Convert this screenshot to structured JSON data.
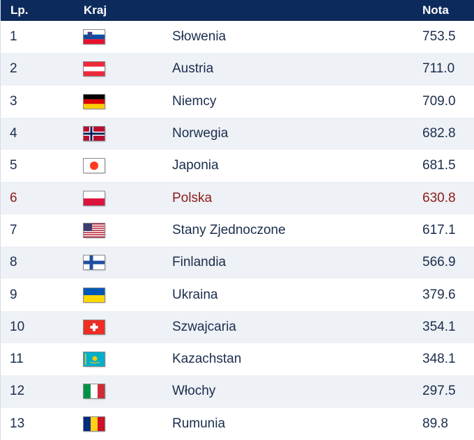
{
  "header": {
    "lp": "Lp.",
    "country": "Kraj",
    "score": "Nota"
  },
  "rows": [
    {
      "rank": "1",
      "country": "Słowenia",
      "score": "753.5",
      "flag": "slovenia-flag-icon"
    },
    {
      "rank": "2",
      "country": "Austria",
      "score": "711.0",
      "flag": "austria-flag-icon"
    },
    {
      "rank": "3",
      "country": "Niemcy",
      "score": "709.0",
      "flag": "germany-flag-icon"
    },
    {
      "rank": "4",
      "country": "Norwegia",
      "score": "682.8",
      "flag": "norway-flag-icon"
    },
    {
      "rank": "5",
      "country": "Japonia",
      "score": "681.5",
      "flag": "japan-flag-icon"
    },
    {
      "rank": "6",
      "country": "Polska",
      "score": "630.8",
      "flag": "poland-flag-icon",
      "highlight_color": "#8b1a1a"
    },
    {
      "rank": "7",
      "country": "Stany Zjednoczone",
      "score": "617.1",
      "flag": "usa-flag-icon"
    },
    {
      "rank": "8",
      "country": "Finlandia",
      "score": "566.9",
      "flag": "finland-flag-icon"
    },
    {
      "rank": "9",
      "country": "Ukraina",
      "score": "379.6",
      "flag": "ukraine-flag-icon"
    },
    {
      "rank": "10",
      "country": "Szwajcaria",
      "score": "354.1",
      "flag": "switzerland-flag-icon"
    },
    {
      "rank": "11",
      "country": "Kazachstan",
      "score": "348.1",
      "flag": "kazakhstan-flag-icon"
    },
    {
      "rank": "12",
      "country": "Włochy",
      "score": "297.5",
      "flag": "italy-flag-icon"
    },
    {
      "rank": "13",
      "country": "Rumunia",
      "score": "89.8",
      "flag": "romania-flag-icon"
    }
  ],
  "colors": {
    "header_bg": "#0c2a5c",
    "alt_row_bg": "#eef1f5",
    "text": "#1a2d4d",
    "highlight": "#8b1a1a"
  }
}
